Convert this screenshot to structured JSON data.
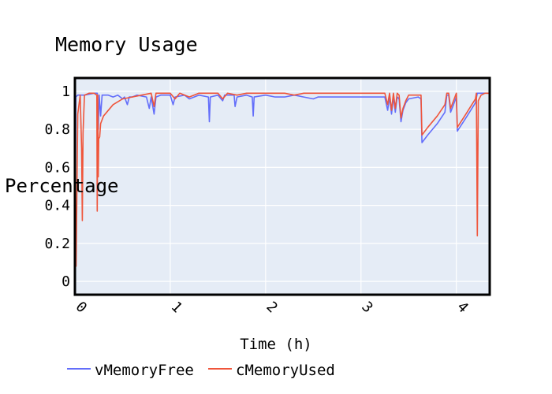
{
  "chart_data": {
    "type": "line",
    "title": "Memory Usage",
    "xlabel": "Time (h)",
    "ylabel": "Percentage",
    "xlim": [
      0,
      4.35
    ],
    "ylim": [
      -0.07,
      1.07
    ],
    "x_ticks": [
      {
        "value": 0,
        "label": "0"
      },
      {
        "value": 1,
        "label": "1"
      },
      {
        "value": 2,
        "label": "2"
      },
      {
        "value": 3,
        "label": "3"
      },
      {
        "value": 4,
        "label": "4"
      }
    ],
    "y_ticks": [
      {
        "value": 0,
        "label": "0"
      },
      {
        "value": 0.2,
        "label": "0.2"
      },
      {
        "value": 0.4,
        "label": "0.4"
      },
      {
        "value": 0.6,
        "label": "0.6"
      },
      {
        "value": 0.8,
        "label": "0.8"
      },
      {
        "value": 1,
        "label": "1"
      }
    ],
    "grid": true,
    "legend_position": "bottom-left",
    "plot_background": "#e5ecf6",
    "series": [
      {
        "name": "vMemoryFree",
        "color": "#636efa",
        "points": [
          [
            0.0,
            0.0
          ],
          [
            0.01,
            0.97
          ],
          [
            0.03,
            0.98
          ],
          [
            0.1,
            0.98
          ],
          [
            0.2,
            0.99
          ],
          [
            0.235,
            0.99
          ],
          [
            0.245,
            0.8
          ],
          [
            0.255,
            0.98
          ],
          [
            0.27,
            0.87
          ],
          [
            0.285,
            0.98
          ],
          [
            0.35,
            0.98
          ],
          [
            0.4,
            0.97
          ],
          [
            0.45,
            0.98
          ],
          [
            0.5,
            0.96
          ],
          [
            0.52,
            0.97
          ],
          [
            0.55,
            0.93
          ],
          [
            0.57,
            0.97
          ],
          [
            0.6,
            0.97
          ],
          [
            0.65,
            0.98
          ],
          [
            0.75,
            0.97
          ],
          [
            0.78,
            0.91
          ],
          [
            0.8,
            0.97
          ],
          [
            0.83,
            0.88
          ],
          [
            0.85,
            0.97
          ],
          [
            0.9,
            0.98
          ],
          [
            1.0,
            0.98
          ],
          [
            1.03,
            0.93
          ],
          [
            1.05,
            0.97
          ],
          [
            1.15,
            0.98
          ],
          [
            1.2,
            0.96
          ],
          [
            1.3,
            0.98
          ],
          [
            1.4,
            0.97
          ],
          [
            1.41,
            0.84
          ],
          [
            1.42,
            0.97
          ],
          [
            1.5,
            0.98
          ],
          [
            1.55,
            0.95
          ],
          [
            1.57,
            0.98
          ],
          [
            1.67,
            0.98
          ],
          [
            1.68,
            0.92
          ],
          [
            1.7,
            0.97
          ],
          [
            1.8,
            0.98
          ],
          [
            1.86,
            0.97
          ],
          [
            1.87,
            0.87
          ],
          [
            1.88,
            0.97
          ],
          [
            2.0,
            0.98
          ],
          [
            2.1,
            0.97
          ],
          [
            2.2,
            0.97
          ],
          [
            2.3,
            0.98
          ],
          [
            2.4,
            0.97
          ],
          [
            2.5,
            0.96
          ],
          [
            2.55,
            0.97
          ],
          [
            2.7,
            0.97
          ],
          [
            2.8,
            0.97
          ],
          [
            2.9,
            0.97
          ],
          [
            3.0,
            0.97
          ],
          [
            3.05,
            0.97
          ],
          [
            3.1,
            0.97
          ],
          [
            3.2,
            0.97
          ],
          [
            3.25,
            0.97
          ],
          [
            3.28,
            0.9
          ],
          [
            3.3,
            0.97
          ],
          [
            3.32,
            0.88
          ],
          [
            3.34,
            0.97
          ],
          [
            3.36,
            0.89
          ],
          [
            3.38,
            0.97
          ],
          [
            3.4,
            0.96
          ],
          [
            3.42,
            0.84
          ],
          [
            3.44,
            0.9
          ],
          [
            3.47,
            0.94
          ],
          [
            3.5,
            0.96
          ],
          [
            3.6,
            0.97
          ],
          [
            3.63,
            0.96
          ],
          [
            3.64,
            0.73
          ],
          [
            3.7,
            0.77
          ],
          [
            3.8,
            0.83
          ],
          [
            3.88,
            0.89
          ],
          [
            3.9,
            0.98
          ],
          [
            3.92,
            0.98
          ],
          [
            3.94,
            0.89
          ],
          [
            3.97,
            0.93
          ],
          [
            4.0,
            0.97
          ],
          [
            4.01,
            0.79
          ],
          [
            4.1,
            0.86
          ],
          [
            4.2,
            0.94
          ],
          [
            4.22,
            0.99
          ],
          [
            4.3,
            0.99
          ],
          [
            4.35,
            0.99
          ]
        ]
      },
      {
        "name": "cMemoryUsed",
        "color": "#ef553b",
        "points": [
          [
            0.0,
            0.0
          ],
          [
            0.003,
            0.98
          ],
          [
            0.006,
            0.3
          ],
          [
            0.012,
            0.08
          ],
          [
            0.03,
            0.88
          ],
          [
            0.055,
            0.98
          ],
          [
            0.07,
            0.7
          ],
          [
            0.078,
            0.32
          ],
          [
            0.085,
            0.78
          ],
          [
            0.1,
            0.98
          ],
          [
            0.15,
            0.99
          ],
          [
            0.2,
            0.99
          ],
          [
            0.23,
            0.98
          ],
          [
            0.234,
            0.37
          ],
          [
            0.24,
            0.98
          ],
          [
            0.245,
            0.55
          ],
          [
            0.25,
            0.75
          ],
          [
            0.26,
            0.76
          ],
          [
            0.27,
            0.83
          ],
          [
            0.3,
            0.87
          ],
          [
            0.4,
            0.93
          ],
          [
            0.5,
            0.96
          ],
          [
            0.6,
            0.97
          ],
          [
            0.7,
            0.98
          ],
          [
            0.8,
            0.99
          ],
          [
            0.83,
            0.92
          ],
          [
            0.85,
            0.99
          ],
          [
            0.9,
            0.99
          ],
          [
            1.0,
            0.99
          ],
          [
            1.05,
            0.96
          ],
          [
            1.1,
            0.99
          ],
          [
            1.2,
            0.97
          ],
          [
            1.3,
            0.99
          ],
          [
            1.4,
            0.99
          ],
          [
            1.5,
            0.99
          ],
          [
            1.55,
            0.96
          ],
          [
            1.6,
            0.99
          ],
          [
            1.7,
            0.98
          ],
          [
            1.8,
            0.99
          ],
          [
            1.9,
            0.99
          ],
          [
            2.0,
            0.99
          ],
          [
            2.1,
            0.99
          ],
          [
            2.2,
            0.99
          ],
          [
            2.3,
            0.98
          ],
          [
            2.4,
            0.99
          ],
          [
            2.5,
            0.99
          ],
          [
            2.6,
            0.99
          ],
          [
            2.7,
            0.99
          ],
          [
            2.8,
            0.99
          ],
          [
            2.9,
            0.99
          ],
          [
            3.0,
            0.99
          ],
          [
            3.1,
            0.99
          ],
          [
            3.2,
            0.99
          ],
          [
            3.25,
            0.99
          ],
          [
            3.28,
            0.93
          ],
          [
            3.3,
            0.99
          ],
          [
            3.32,
            0.9
          ],
          [
            3.34,
            0.99
          ],
          [
            3.36,
            0.91
          ],
          [
            3.38,
            0.99
          ],
          [
            3.4,
            0.98
          ],
          [
            3.42,
            0.86
          ],
          [
            3.44,
            0.91
          ],
          [
            3.47,
            0.95
          ],
          [
            3.5,
            0.98
          ],
          [
            3.6,
            0.98
          ],
          [
            3.63,
            0.98
          ],
          [
            3.64,
            0.77
          ],
          [
            3.7,
            0.81
          ],
          [
            3.8,
            0.87
          ],
          [
            3.88,
            0.93
          ],
          [
            3.9,
            0.99
          ],
          [
            3.92,
            0.99
          ],
          [
            3.94,
            0.91
          ],
          [
            3.97,
            0.95
          ],
          [
            4.0,
            0.99
          ],
          [
            4.01,
            0.81
          ],
          [
            4.1,
            0.88
          ],
          [
            4.2,
            0.96
          ],
          [
            4.21,
            0.99
          ],
          [
            4.22,
            0.24
          ],
          [
            4.23,
            0.95
          ],
          [
            4.26,
            0.98
          ],
          [
            4.3,
            0.99
          ],
          [
            4.35,
            0.99
          ]
        ]
      }
    ]
  }
}
